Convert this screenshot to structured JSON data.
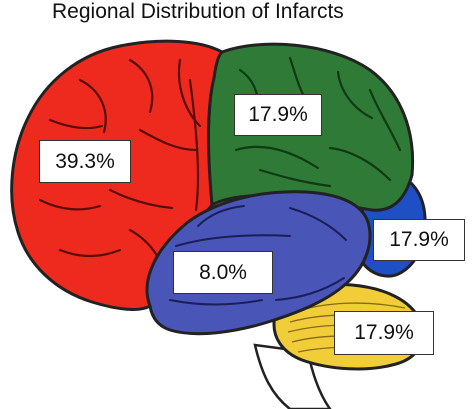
{
  "title": "Regional Distribution of Infarcts",
  "regions": [
    {
      "id": "frontal",
      "label": "39.3%",
      "color": "#ee2a1f"
    },
    {
      "id": "parietal",
      "label": "17.9%",
      "color": "#2f7a36"
    },
    {
      "id": "occipital",
      "label": "17.9%",
      "color": "#1f4fc4"
    },
    {
      "id": "temporal",
      "label": "8.0%",
      "color": "#4a55b8"
    },
    {
      "id": "cerebellum",
      "label": "17.9%",
      "color": "#f2cd3a"
    }
  ]
}
